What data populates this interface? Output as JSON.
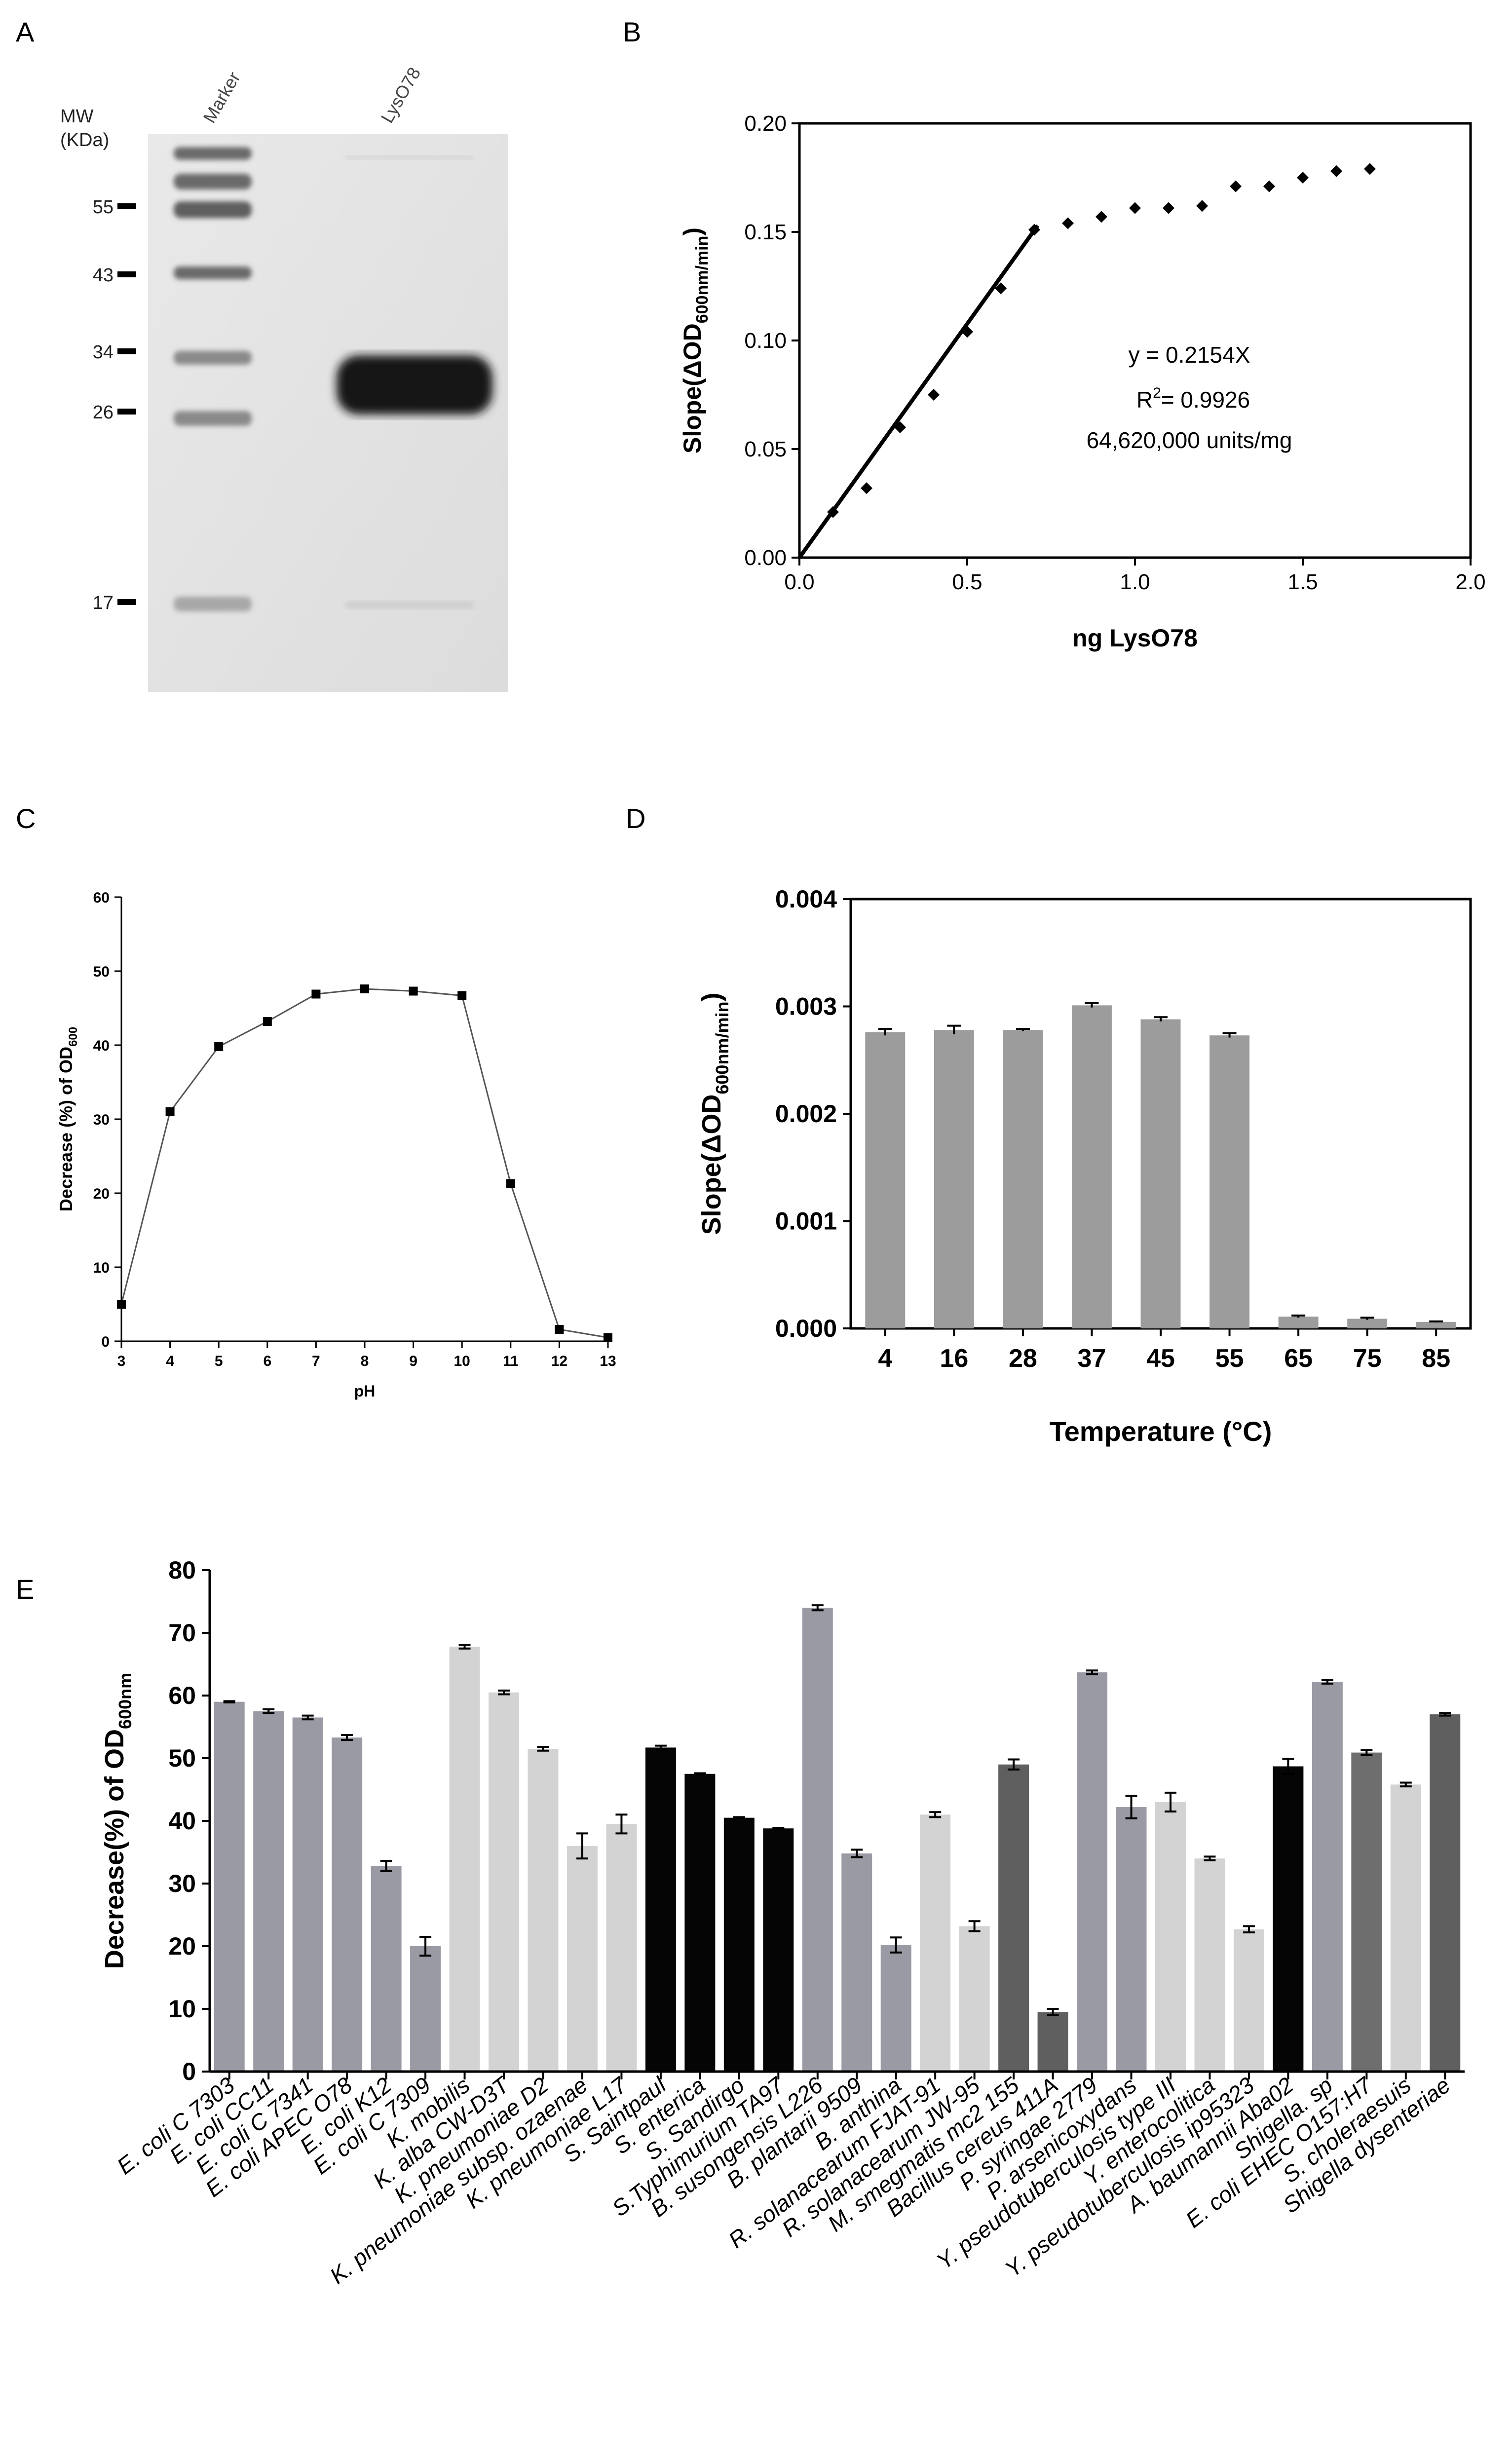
{
  "chart_data": [
    {
      "panel": "A",
      "type": "gel",
      "lane_labels": [
        "Marker",
        "LysO78"
      ],
      "mw_label_line1": "MW",
      "mw_label_line2": "(KDa)",
      "markers": [
        55,
        43,
        34,
        26,
        17
      ]
    },
    {
      "panel": "B",
      "type": "scatter",
      "xlabel": "ng LysO78",
      "ylabel_prefix": "Slope(",
      "ylabel_delta": "ΔOD",
      "ylabel_sub": "600nm/min",
      "ylabel_suffix": ")",
      "xlim": [
        0,
        2.0
      ],
      "ylim": [
        0,
        0.2
      ],
      "xticks": [
        0.0,
        0.5,
        1.0,
        1.5,
        2.0
      ],
      "xtick_labels": [
        "0.0",
        "0.5",
        "1.0",
        "1.5",
        "2.0"
      ],
      "yticks": [
        0,
        0.05,
        0.1,
        0.15,
        0.2
      ],
      "ytick_labels": [
        "0.00",
        "0.05",
        "0.10",
        "0.15",
        "0.20"
      ],
      "points": [
        [
          0.1,
          0.021
        ],
        [
          0.2,
          0.032
        ],
        [
          0.3,
          0.06
        ],
        [
          0.4,
          0.075
        ],
        [
          0.5,
          0.104
        ],
        [
          0.6,
          0.124
        ],
        [
          0.7,
          0.151
        ],
        [
          0.8,
          0.154
        ],
        [
          0.9,
          0.157
        ],
        [
          1.0,
          0.161
        ],
        [
          1.1,
          0.161
        ],
        [
          1.2,
          0.162
        ],
        [
          1.3,
          0.171
        ],
        [
          1.4,
          0.171
        ],
        [
          1.5,
          0.175
        ],
        [
          1.6,
          0.178
        ],
        [
          1.7,
          0.179
        ]
      ],
      "fit_line": {
        "x0": 0,
        "x1": 0.71,
        "slope": 0.2154
      },
      "equation": "y = 0.2154X",
      "r2_text": "= 0.9926",
      "r2_label": "R",
      "r2_sup": "2",
      "units_text": "64,620,000 units/mg"
    },
    {
      "panel": "C",
      "type": "line",
      "xlabel": "pH",
      "ylabel_main": "Decrease (%) of OD",
      "ylabel_sub": "600",
      "x": [
        3,
        4,
        5,
        6,
        7,
        8,
        9,
        10,
        11,
        12,
        13
      ],
      "values": [
        5,
        31,
        39.8,
        43.2,
        46.9,
        47.6,
        47.3,
        46.7,
        21.3,
        1.6,
        0.5
      ],
      "xlim": [
        3,
        13
      ],
      "ylim": [
        0,
        60
      ],
      "xtick_labels": [
        "3",
        "4",
        "5",
        "6",
        "7",
        "8",
        "9",
        "10",
        "11",
        "12",
        "13"
      ],
      "yticks": [
        0,
        10,
        20,
        30,
        40,
        50,
        60
      ],
      "ytick_labels": [
        "0",
        "10",
        "20",
        "30",
        "40",
        "50",
        "60"
      ]
    },
    {
      "panel": "D",
      "type": "bar",
      "xlabel": "Temperature (°C)",
      "ylabel_prefix": "Slope(",
      "ylabel_delta": "ΔOD",
      "ylabel_sub": "600nm/min",
      "ylabel_suffix": ")",
      "categories": [
        "4",
        "16",
        "28",
        "37",
        "45",
        "55",
        "65",
        "75",
        "85"
      ],
      "values": [
        0.00276,
        0.00278,
        0.00278,
        0.00301,
        0.00288,
        0.00273,
        0.00011,
        9e-05,
        6e-05
      ],
      "errors": [
        3e-05,
        4e-05,
        1e-05,
        2e-05,
        2e-05,
        2e-05,
        1e-05,
        1e-05,
        5e-06
      ],
      "ylim": [
        0,
        0.004
      ],
      "yticks": [
        0,
        0.001,
        0.002,
        0.003,
        0.004
      ],
      "ytick_labels": [
        "0.000",
        "0.001",
        "0.002",
        "0.003",
        "0.004"
      ],
      "bar_color": "#9c9c9c"
    },
    {
      "panel": "E",
      "type": "bar",
      "ylabel_main": "Decrease(%) of OD",
      "ylabel_sub": "600nm",
      "ylim": [
        0,
        80
      ],
      "yticks": [
        0,
        10,
        20,
        30,
        40,
        50,
        60,
        70,
        80
      ],
      "ytick_labels": [
        "0",
        "10",
        "20",
        "30",
        "40",
        "50",
        "60",
        "70",
        "80"
      ],
      "categories": [
        {
          "label": "E. coli C 7303",
          "value": 59.0,
          "error": 0.1,
          "color": "#9a9aa4"
        },
        {
          "label": "E. coli CC11",
          "value": 57.5,
          "error": 0.3,
          "color": "#9a9aa4"
        },
        {
          "label": "E. coli C 7341",
          "value": 56.5,
          "error": 0.3,
          "color": "#9a9aa4"
        },
        {
          "label": "E. coli APEC O78",
          "value": 53.3,
          "error": 0.4,
          "color": "#9a9aa4"
        },
        {
          "label": "E. coli K12",
          "value": 32.8,
          "error": 0.8,
          "color": "#9a9aa4"
        },
        {
          "label": "E. coli C 7309",
          "value": 20.0,
          "error": 1.5,
          "color": "#9a9aa4"
        },
        {
          "label": "K. mobilis",
          "value": 67.8,
          "error": 0.3,
          "color": "#d3d3d3"
        },
        {
          "label": "K. alba CW-D3T",
          "value": 60.5,
          "error": 0.3,
          "color": "#d3d3d3"
        },
        {
          "label": "K. pneumoniae D2",
          "value": 51.5,
          "error": 0.3,
          "color": "#d3d3d3"
        },
        {
          "label": "K. pneumoniae subsp. ozaenae",
          "value": 36.0,
          "error": 2.0,
          "color": "#d3d3d3"
        },
        {
          "label": "K. pneumoniae L17",
          "value": 39.5,
          "error": 1.5,
          "color": "#d3d3d3"
        },
        {
          "label": "S. Saintpaul",
          "value": 51.7,
          "error": 0.3,
          "color": "#050505"
        },
        {
          "label": "S. enterica",
          "value": 47.5,
          "error": 0.1,
          "color": "#050505"
        },
        {
          "label": "S. Sandirgo",
          "value": 40.5,
          "error": 0.1,
          "color": "#050505"
        },
        {
          "label": "S.Typhimurium TA97",
          "value": 38.8,
          "error": 0.1,
          "color": "#050505"
        },
        {
          "label": "B. susongensis L226",
          "value": 74.0,
          "error": 0.4,
          "color": "#9a9aa4"
        },
        {
          "label": "B. plantarii 9509",
          "value": 34.8,
          "error": 0.6,
          "color": "#9a9aa4"
        },
        {
          "label": "B. anthina",
          "value": 20.2,
          "error": 1.2,
          "color": "#9a9aa4"
        },
        {
          "label": "R. solanacearum FJAT-91",
          "value": 41.0,
          "error": 0.4,
          "color": "#d3d3d3"
        },
        {
          "label": "R. solanacearum JW-95",
          "value": 23.2,
          "error": 0.8,
          "color": "#d3d3d3"
        },
        {
          "label": "M. smegmatis mc2 155",
          "value": 49.0,
          "error": 0.8,
          "color": "#5f5f5f"
        },
        {
          "label": "Bacillus cereus 411A",
          "value": 9.5,
          "error": 0.5,
          "color": "#5f5f5f"
        },
        {
          "label": "P. syringae 2779",
          "value": 63.7,
          "error": 0.3,
          "color": "#9a9aa4"
        },
        {
          "label": "P. arsenicoxydans",
          "value": 42.2,
          "error": 1.8,
          "color": "#9a9aa4"
        },
        {
          "label": "Y. pseudotuberculosis type III",
          "value": 43.0,
          "error": 1.5,
          "color": "#d3d3d3"
        },
        {
          "label": "Y. enterocolitica",
          "value": 34.0,
          "error": 0.3,
          "color": "#d3d3d3"
        },
        {
          "label": "Y. pseudotuberculosis ip95323",
          "value": 22.7,
          "error": 0.5,
          "color": "#d3d3d3"
        },
        {
          "label": "A. baumannii Aba02",
          "value": 48.7,
          "error": 1.2,
          "color": "#050505"
        },
        {
          "label": "Shigella. sp",
          "value": 62.2,
          "error": 0.3,
          "color": "#9a9aa4"
        },
        {
          "label": "E. coli EHEC O157:H7",
          "value": 50.9,
          "error": 0.4,
          "color": "#6e6e6e"
        },
        {
          "label": "S. choleraesuis",
          "value": 45.8,
          "error": 0.3,
          "color": "#d3d3d3"
        },
        {
          "label": "Shigella dysenteriae",
          "value": 57.0,
          "error": 0.2,
          "color": "#5f5f5f"
        }
      ]
    }
  ]
}
